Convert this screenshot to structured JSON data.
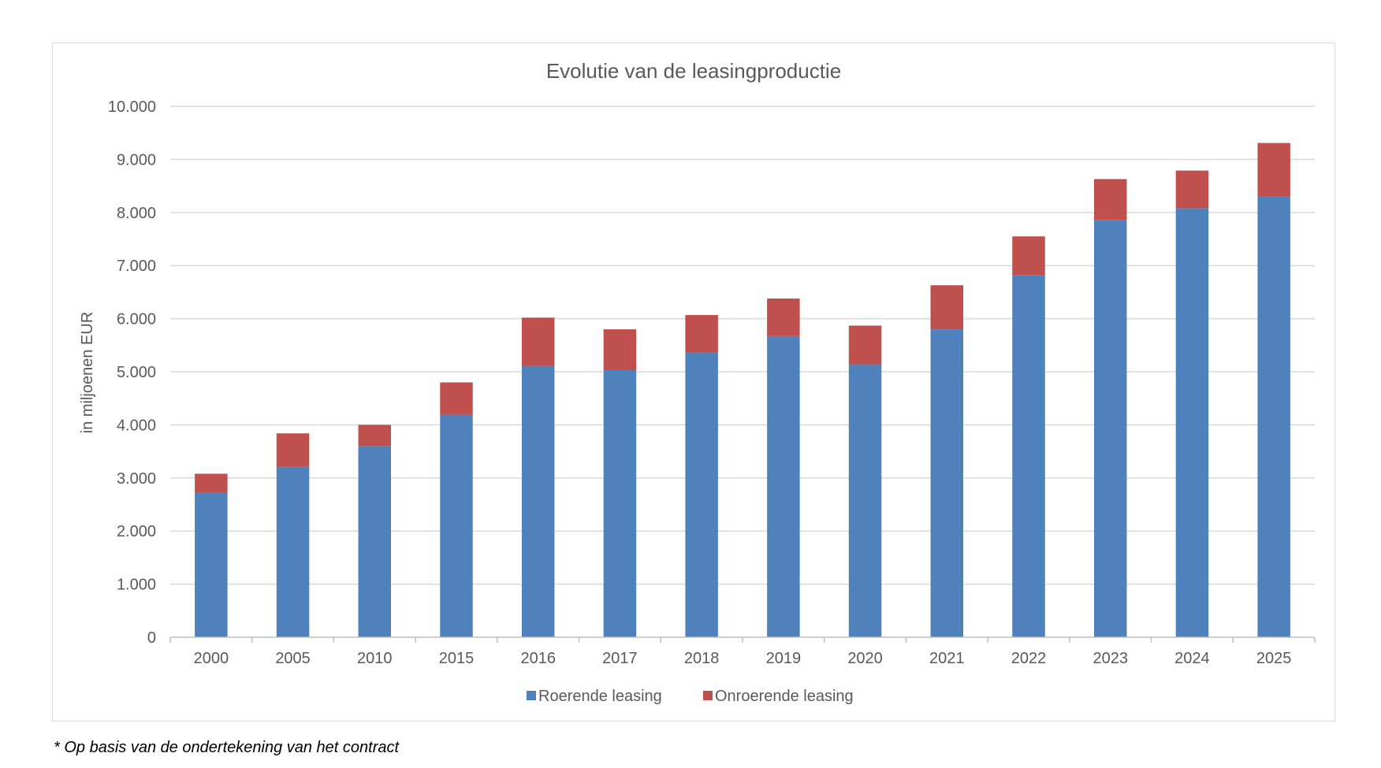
{
  "chart_data": {
    "type": "bar",
    "stacked": true,
    "title": "Evolutie van de leasingproductie",
    "xlabel": "",
    "ylabel": "in miljoenen EUR",
    "ylim": [
      0,
      10000
    ],
    "yticks": [
      "0",
      "1.000",
      "2.000",
      "3.000",
      "4.000",
      "5.000",
      "6.000",
      "7.000",
      "8.000",
      "9.000",
      "10.000"
    ],
    "categories": [
      "2000",
      "2005",
      "2010",
      "2015",
      "2016",
      "2017",
      "2018",
      "2019",
      "2020",
      "2021",
      "2022",
      "2023",
      "2024",
      "2025"
    ],
    "series": [
      {
        "name": "Roerende leasing",
        "color": "#4f81bd",
        "values": [
          2730,
          3210,
          3600,
          4190,
          5110,
          5030,
          5370,
          5670,
          5140,
          5800,
          6820,
          7860,
          8080,
          8300
        ]
      },
      {
        "name": "Onroerende leasing",
        "color": "#c0504d",
        "values": [
          350,
          630,
          400,
          610,
          910,
          770,
          700,
          710,
          730,
          830,
          730,
          770,
          710,
          1010
        ]
      }
    ],
    "grid": true,
    "legend_position": "bottom"
  },
  "footnote": "* Op basis van de ondertekening van het contract"
}
